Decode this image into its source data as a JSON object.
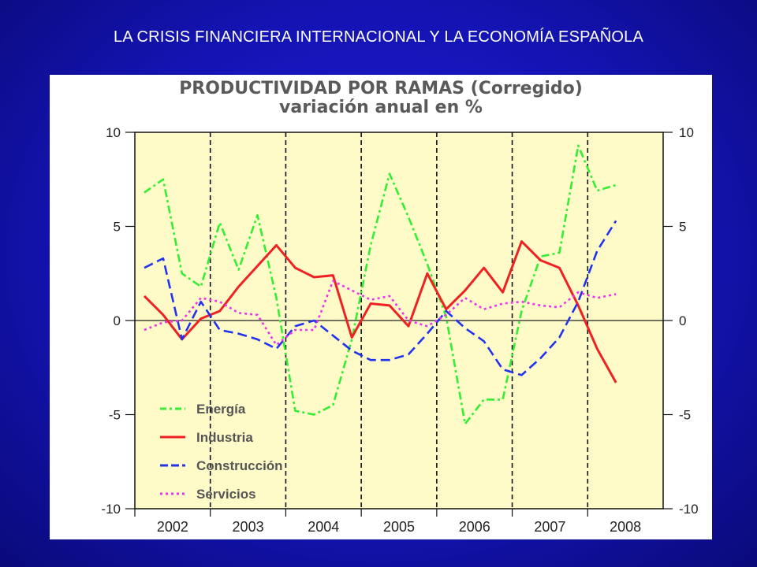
{
  "slide": {
    "title": "LA CRISIS FINANCIERA INTERNACIONAL  Y LA ECONOMÍA ESPAÑOLA"
  },
  "colors": {
    "background": "#1414b4",
    "plot_background": "#fffbc8",
    "energia": "#33ee33",
    "industria": "#ee2222",
    "construccion": "#2233ee",
    "servicios": "#ee33ee"
  },
  "chart_data": {
    "type": "line",
    "title": "PRODUCTIVIDAD POR RAMAS (Corregido)",
    "subtitle": "variación anual en %",
    "xlabel": "",
    "ylabel": "",
    "ylim": [
      -10,
      10
    ],
    "yticks": [
      10,
      5,
      0,
      -5,
      -10
    ],
    "right_axis_ticks": [
      10,
      5,
      0,
      -5,
      -10
    ],
    "grid": false,
    "x_start": 2002.0,
    "x_end": 2009.0,
    "year_labels": [
      "2002",
      "2003",
      "2004",
      "2005",
      "2006",
      "2007",
      "2008"
    ],
    "year_dividers": [
      2003,
      2004,
      2005,
      2006,
      2007,
      2008
    ],
    "legend_position": "bottom-left",
    "series": [
      {
        "name": "Energía",
        "color": "#33ee33",
        "dash": "dashdot",
        "x": [
          2002.125,
          2002.375,
          2002.625,
          2002.875,
          2003.125,
          2003.375,
          2003.625,
          2003.875,
          2004.125,
          2004.375,
          2004.625,
          2004.875,
          2005.125,
          2005.375,
          2005.625,
          2005.875,
          2006.125,
          2006.375,
          2006.625,
          2006.875,
          2007.125,
          2007.375,
          2007.625,
          2007.875,
          2008.125,
          2008.375
        ],
        "values": [
          6.8,
          7.5,
          2.5,
          1.8,
          5.2,
          2.7,
          5.6,
          1.2,
          -4.8,
          -5.0,
          -4.5,
          -1.0,
          4.0,
          7.8,
          5.5,
          3.0,
          0.2,
          -5.5,
          -4.2,
          -4.2,
          0.5,
          3.4,
          3.6,
          9.3,
          6.9,
          7.2
        ]
      },
      {
        "name": "Industria",
        "color": "#ee2222",
        "dash": "solid",
        "x": [
          2002.125,
          2002.375,
          2002.625,
          2002.875,
          2003.125,
          2003.375,
          2003.625,
          2003.875,
          2004.125,
          2004.375,
          2004.625,
          2004.875,
          2005.125,
          2005.375,
          2005.625,
          2005.875,
          2006.125,
          2006.375,
          2006.625,
          2006.875,
          2007.125,
          2007.375,
          2007.625,
          2007.875,
          2008.125,
          2008.375
        ],
        "values": [
          1.3,
          0.3,
          -1.0,
          0.1,
          0.5,
          1.8,
          2.9,
          4.0,
          2.8,
          2.3,
          2.4,
          -0.9,
          0.9,
          0.8,
          -0.3,
          2.5,
          0.6,
          1.6,
          2.8,
          1.5,
          4.2,
          3.2,
          2.8,
          0.8,
          -1.5,
          -3.3
        ]
      },
      {
        "name": "Construcción",
        "color": "#2233ee",
        "dash": "dashed",
        "x": [
          2002.125,
          2002.375,
          2002.625,
          2002.875,
          2003.125,
          2003.375,
          2003.625,
          2003.875,
          2004.125,
          2004.375,
          2004.625,
          2004.875,
          2005.125,
          2005.375,
          2005.625,
          2005.875,
          2006.125,
          2006.375,
          2006.625,
          2006.875,
          2007.125,
          2007.375,
          2007.625,
          2007.875,
          2008.125,
          2008.375
        ],
        "values": [
          2.8,
          3.3,
          -1.0,
          1.0,
          -0.5,
          -0.7,
          -1.0,
          -1.5,
          -0.3,
          0.0,
          -0.8,
          -1.6,
          -2.1,
          -2.1,
          -1.8,
          -0.7,
          0.5,
          -0.4,
          -1.1,
          -2.6,
          -2.9,
          -2.0,
          -0.9,
          1.0,
          3.7,
          5.3
        ]
      },
      {
        "name": "Servicios",
        "color": "#ee33ee",
        "dash": "dotted",
        "x": [
          2002.125,
          2002.375,
          2002.625,
          2002.875,
          2003.125,
          2003.375,
          2003.625,
          2003.875,
          2004.125,
          2004.375,
          2004.625,
          2004.875,
          2005.125,
          2005.375,
          2005.625,
          2005.875,
          2006.125,
          2006.375,
          2006.625,
          2006.875,
          2007.125,
          2007.375,
          2007.625,
          2007.875,
          2008.125,
          2008.375
        ],
        "values": [
          -0.5,
          -0.1,
          0.0,
          1.2,
          1.0,
          0.4,
          0.3,
          -1.3,
          -0.5,
          -0.5,
          2.1,
          1.6,
          1.1,
          1.3,
          0.0,
          -0.3,
          0.3,
          1.2,
          0.6,
          0.9,
          1.0,
          0.8,
          0.7,
          1.5,
          1.2,
          1.4
        ]
      }
    ]
  }
}
